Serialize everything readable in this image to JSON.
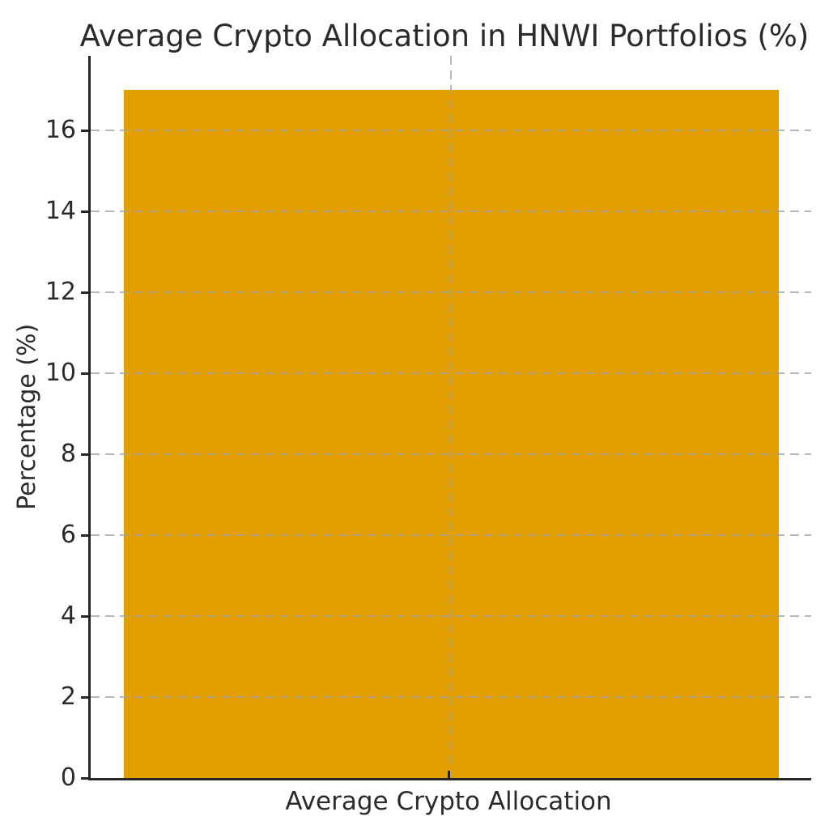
{
  "chart_data": {
    "type": "bar",
    "title": "Average Crypto Allocation in HNWI Portfolios (%)",
    "categories": [
      "Average Crypto Allocation"
    ],
    "values": [
      17
    ],
    "xlabel": "",
    "ylabel": "Percentage (%)",
    "ylim": [
      0,
      17.85
    ],
    "yticks": [
      0,
      2,
      4,
      6,
      8,
      10,
      12,
      14,
      16
    ],
    "grid": "on",
    "grid_style": "dashed",
    "legend": "none",
    "bar_color": "#E39E00",
    "axis_color": "#262626",
    "grid_color": "#A0A0A0",
    "text_color": "#2B2B2B",
    "background_color": "#FFFFFF"
  }
}
